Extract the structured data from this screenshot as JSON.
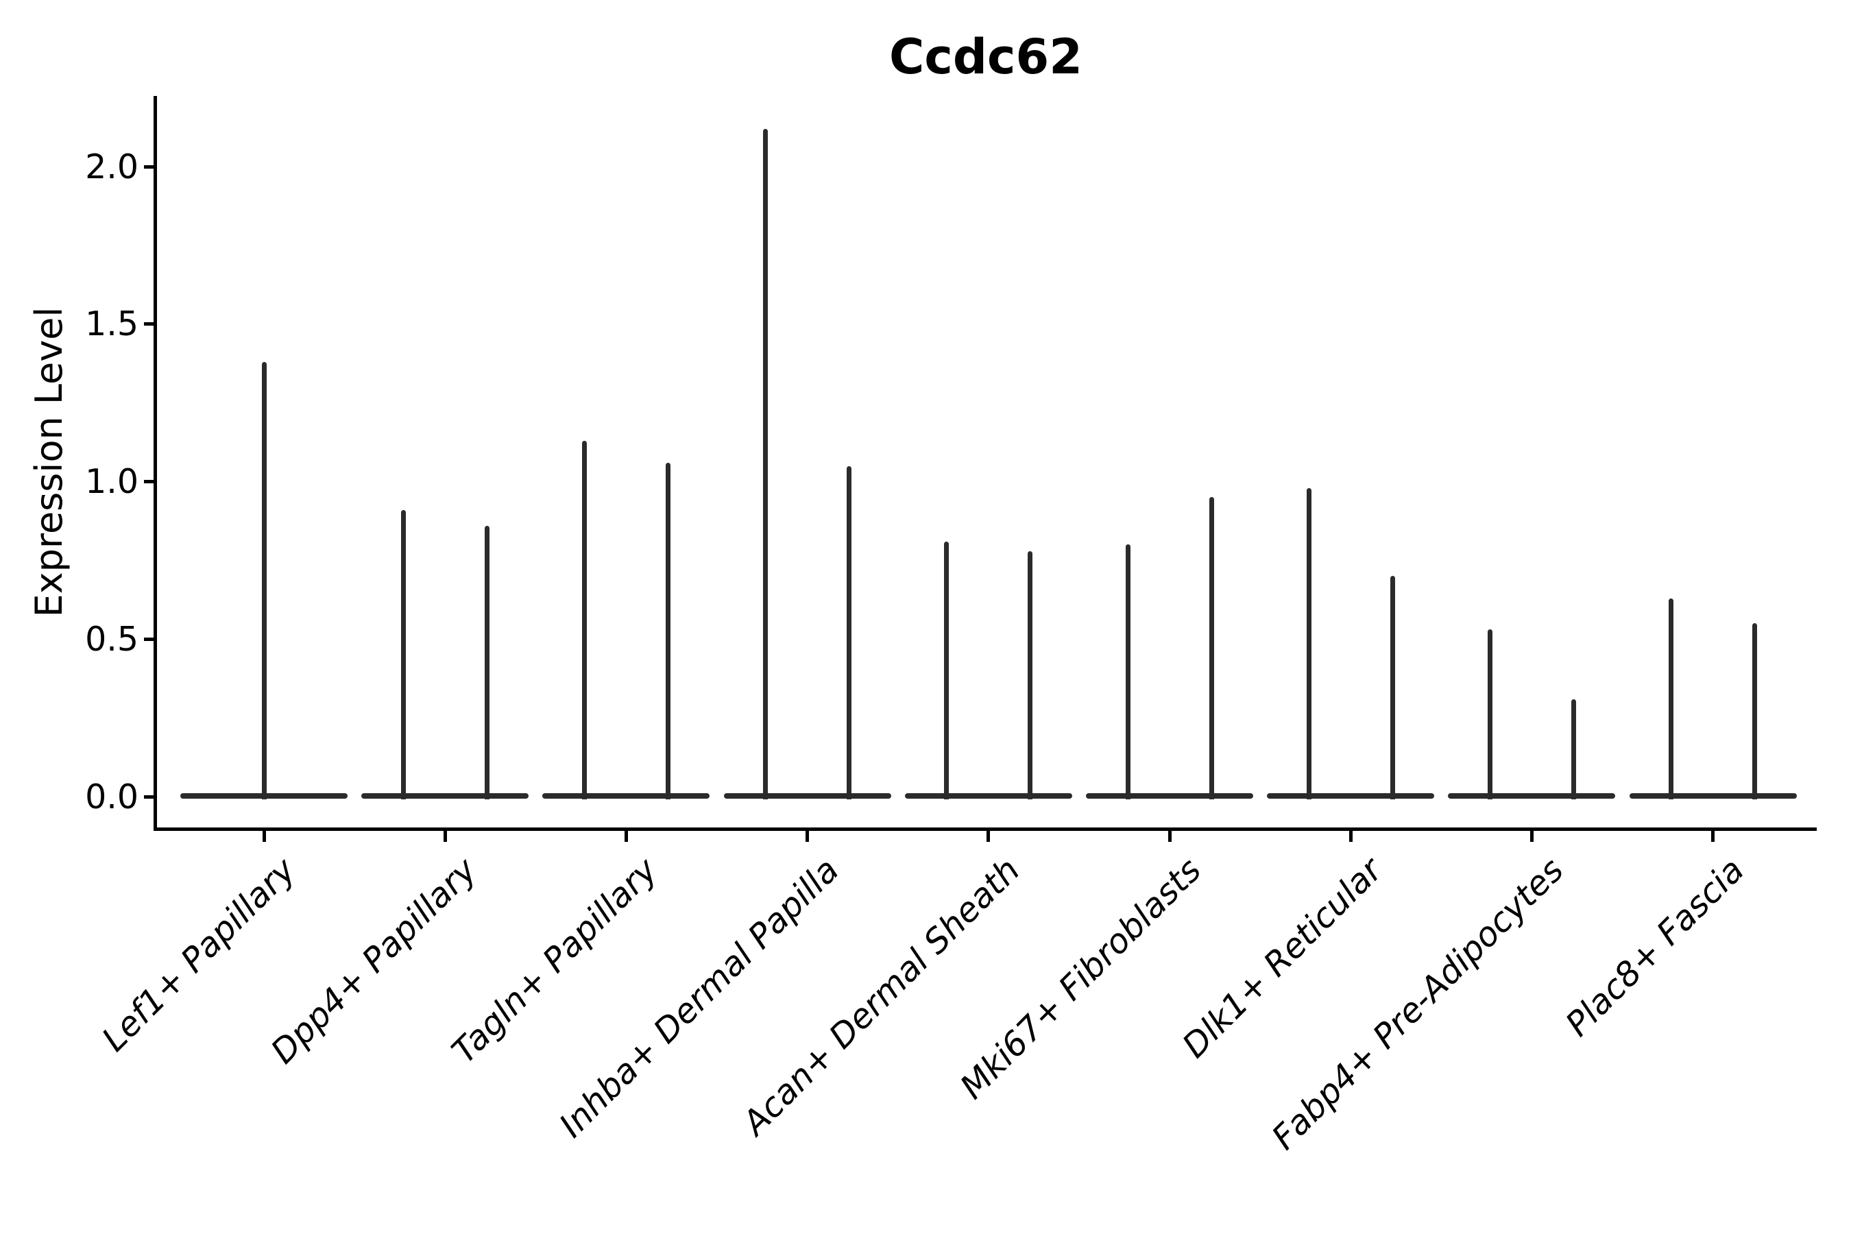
{
  "chart_data": {
    "type": "violin",
    "title": "Ccdc62",
    "ylabel": "Expression Level",
    "xlabel": "",
    "yticks": [
      0.0,
      0.5,
      1.0,
      1.5,
      2.0
    ],
    "ylim": [
      -0.1,
      2.22
    ],
    "grid": false,
    "legend": null,
    "description": "Stacked thin violins: nearly all density at expression 0 (flat baseline across each category) with a thin spike rising to the maximum expression value. Categories 2-9 contain two side-by-side violins; category 1 has a single centered violin.",
    "categories": [
      "Lef1+ Papillary",
      "Dpp4+ Papillary",
      "Tagln+ Papillary",
      "Inhba+ Dermal Papilla",
      "Acan+ Dermal Sheath",
      "Mki67+ Fibroblasts",
      "Dlk1+ Reticular",
      "Fabp4+ Pre-Adipocytes",
      "Plac8+ Fascia"
    ],
    "violins": [
      {
        "category": "Lef1+ Papillary",
        "spike_maxima": [
          1.38
        ]
      },
      {
        "category": "Dpp4+ Papillary",
        "spike_maxima": [
          0.91,
          0.86
        ]
      },
      {
        "category": "Tagln+ Papillary",
        "spike_maxima": [
          1.13,
          1.06
        ]
      },
      {
        "category": "Inhba+ Dermal Papilla",
        "spike_maxima": [
          2.12,
          1.05
        ]
      },
      {
        "category": "Acan+ Dermal Sheath",
        "spike_maxima": [
          0.81,
          0.78
        ]
      },
      {
        "category": "Mki67+ Fibroblasts",
        "spike_maxima": [
          0.8,
          0.95
        ]
      },
      {
        "category": "Dlk1+ Reticular",
        "spike_maxima": [
          0.98,
          0.7
        ]
      },
      {
        "category": "Fabp4+ Pre-Adipocytes",
        "spike_maxima": [
          0.53,
          0.31
        ]
      },
      {
        "category": "Plac8+ Fascia",
        "spike_maxima": [
          0.63,
          0.55
        ]
      }
    ],
    "baseline_value": 0.0,
    "colors": {
      "violin": "#2b2b2b",
      "axis": "#000000",
      "text": "#000000",
      "background": "#ffffff"
    }
  }
}
